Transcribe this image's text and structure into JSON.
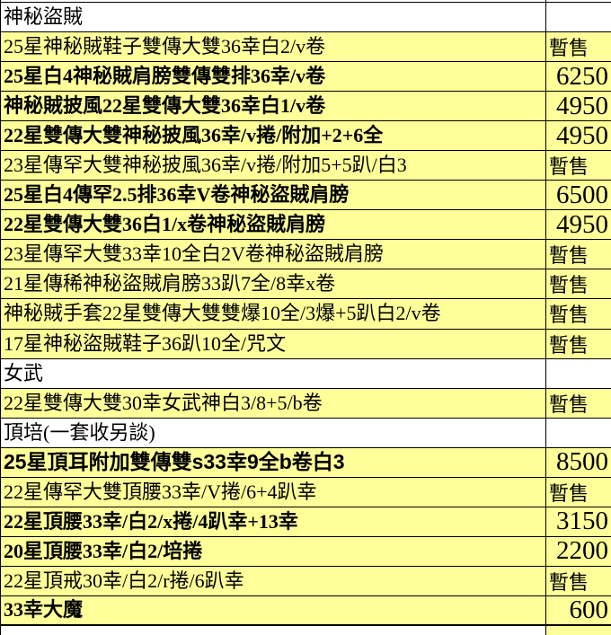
{
  "rows": [
    {
      "name": "神秘盜賊",
      "price": "",
      "kind": "section"
    },
    {
      "name": "25星神秘賊鞋子雙傳大雙36幸白2/v卷",
      "price": "暫售",
      "kind": "item"
    },
    {
      "name": "25星白4神秘賊肩膀雙傳雙排36幸/v卷",
      "price": "6250",
      "kind": "item"
    },
    {
      "name": "神秘賊披風22星雙傳大雙36幸白1/v卷",
      "price": "4950",
      "kind": "item"
    },
    {
      "name": "22星雙傳大雙神秘披風36幸/v捲/附加+2+6全",
      "price": "4950",
      "kind": "item"
    },
    {
      "name": "23星傳罕大雙神秘披風36幸/v捲/附加5+5趴/白3",
      "price": "暫售",
      "kind": "item"
    },
    {
      "name": "25星白4傳罕2.5排36幸V卷神秘盜賊肩膀",
      "price": "6500",
      "kind": "item"
    },
    {
      "name": "22星雙傳大雙36白1/x卷神秘盜賊肩膀",
      "price": "4950",
      "kind": "item"
    },
    {
      "name": "23星傳罕大雙33幸10全白2V卷神秘盜賊肩膀",
      "price": "暫售",
      "kind": "item"
    },
    {
      "name": "21星傳稀神秘盜賊肩膀33趴7全/8幸x卷",
      "price": "暫售",
      "kind": "item"
    },
    {
      "name": "神秘賊手套22星雙傳大雙雙爆10全/3爆+5趴白2/v卷",
      "price": "暫售",
      "kind": "item"
    },
    {
      "name": "17星神秘盜賊鞋子36趴10全/咒文",
      "price": "暫售",
      "kind": "item"
    },
    {
      "name": "女武",
      "price": "",
      "kind": "section"
    },
    {
      "name": "22星雙傳大雙30幸女武神白3/8+5/b卷",
      "price": "暫售",
      "kind": "item"
    },
    {
      "name": "頂培(一套收另談)",
      "price": "",
      "kind": "section"
    },
    {
      "name": "25星頂耳附加雙傳雙s33幸9全b卷白3",
      "price": "8500",
      "kind": "item"
    },
    {
      "name": "22星傳罕大雙頂腰33幸/V捲/6+4趴幸",
      "price": "暫售",
      "kind": "item"
    },
    {
      "name": "22星頂腰33幸/白2/x捲/4趴幸+13幸",
      "price": "3150",
      "kind": "item"
    },
    {
      "name": "20星頂腰33幸/白2/培捲",
      "price": "2200",
      "kind": "item"
    },
    {
      "name": "22星頂戒30幸/白2/r捲/6趴幸",
      "price": "暫售",
      "kind": "item"
    },
    {
      "name": "33幸大魔",
      "price": "600",
      "kind": "item"
    }
  ],
  "status_label": "暫售",
  "colors": {
    "item_row_bg": "#FFFF99",
    "section_row_bg": "#FFFFFF",
    "border": "#000000",
    "text": "#000000"
  }
}
